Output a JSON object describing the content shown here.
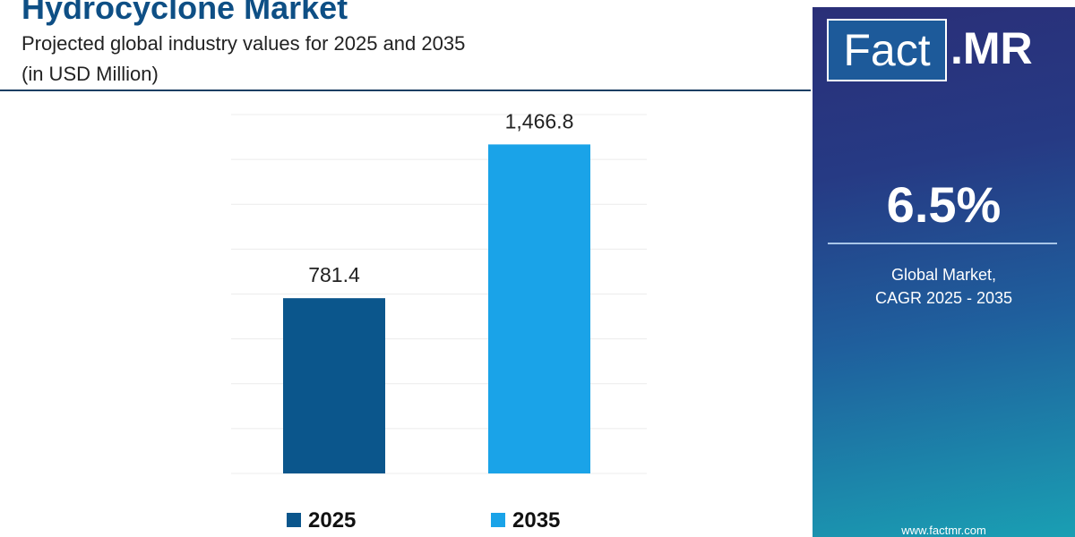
{
  "header": {
    "title": "Hydrocyclone Market",
    "subtitle": "Projected global industry values for 2025 and 2035",
    "unit": "(in USD Million)"
  },
  "chart_data": {
    "type": "bar",
    "title": "Hydrocyclone Market",
    "subtitle": "Projected global industry values for 2025 and 2035",
    "ylabel": "(in USD Million)",
    "categories": [
      "2025",
      "2035"
    ],
    "values": [
      781.4,
      1466.8
    ],
    "value_labels": [
      "781.4",
      "1,466.8"
    ],
    "colors": [
      "#0b568c",
      "#1aa3e8"
    ],
    "ylim": [
      0,
      1600
    ],
    "grid": true,
    "legend": "bottom",
    "legend_entries": [
      "2025",
      "2035"
    ]
  },
  "sidebar": {
    "logo_fact": "Fact",
    "logo_mr": ".MR",
    "cagr_value": "6.5%",
    "cagr_line1": "Global Market,",
    "cagr_line2": "CAGR 2025 - 2035",
    "url": "www.factmr.com"
  }
}
